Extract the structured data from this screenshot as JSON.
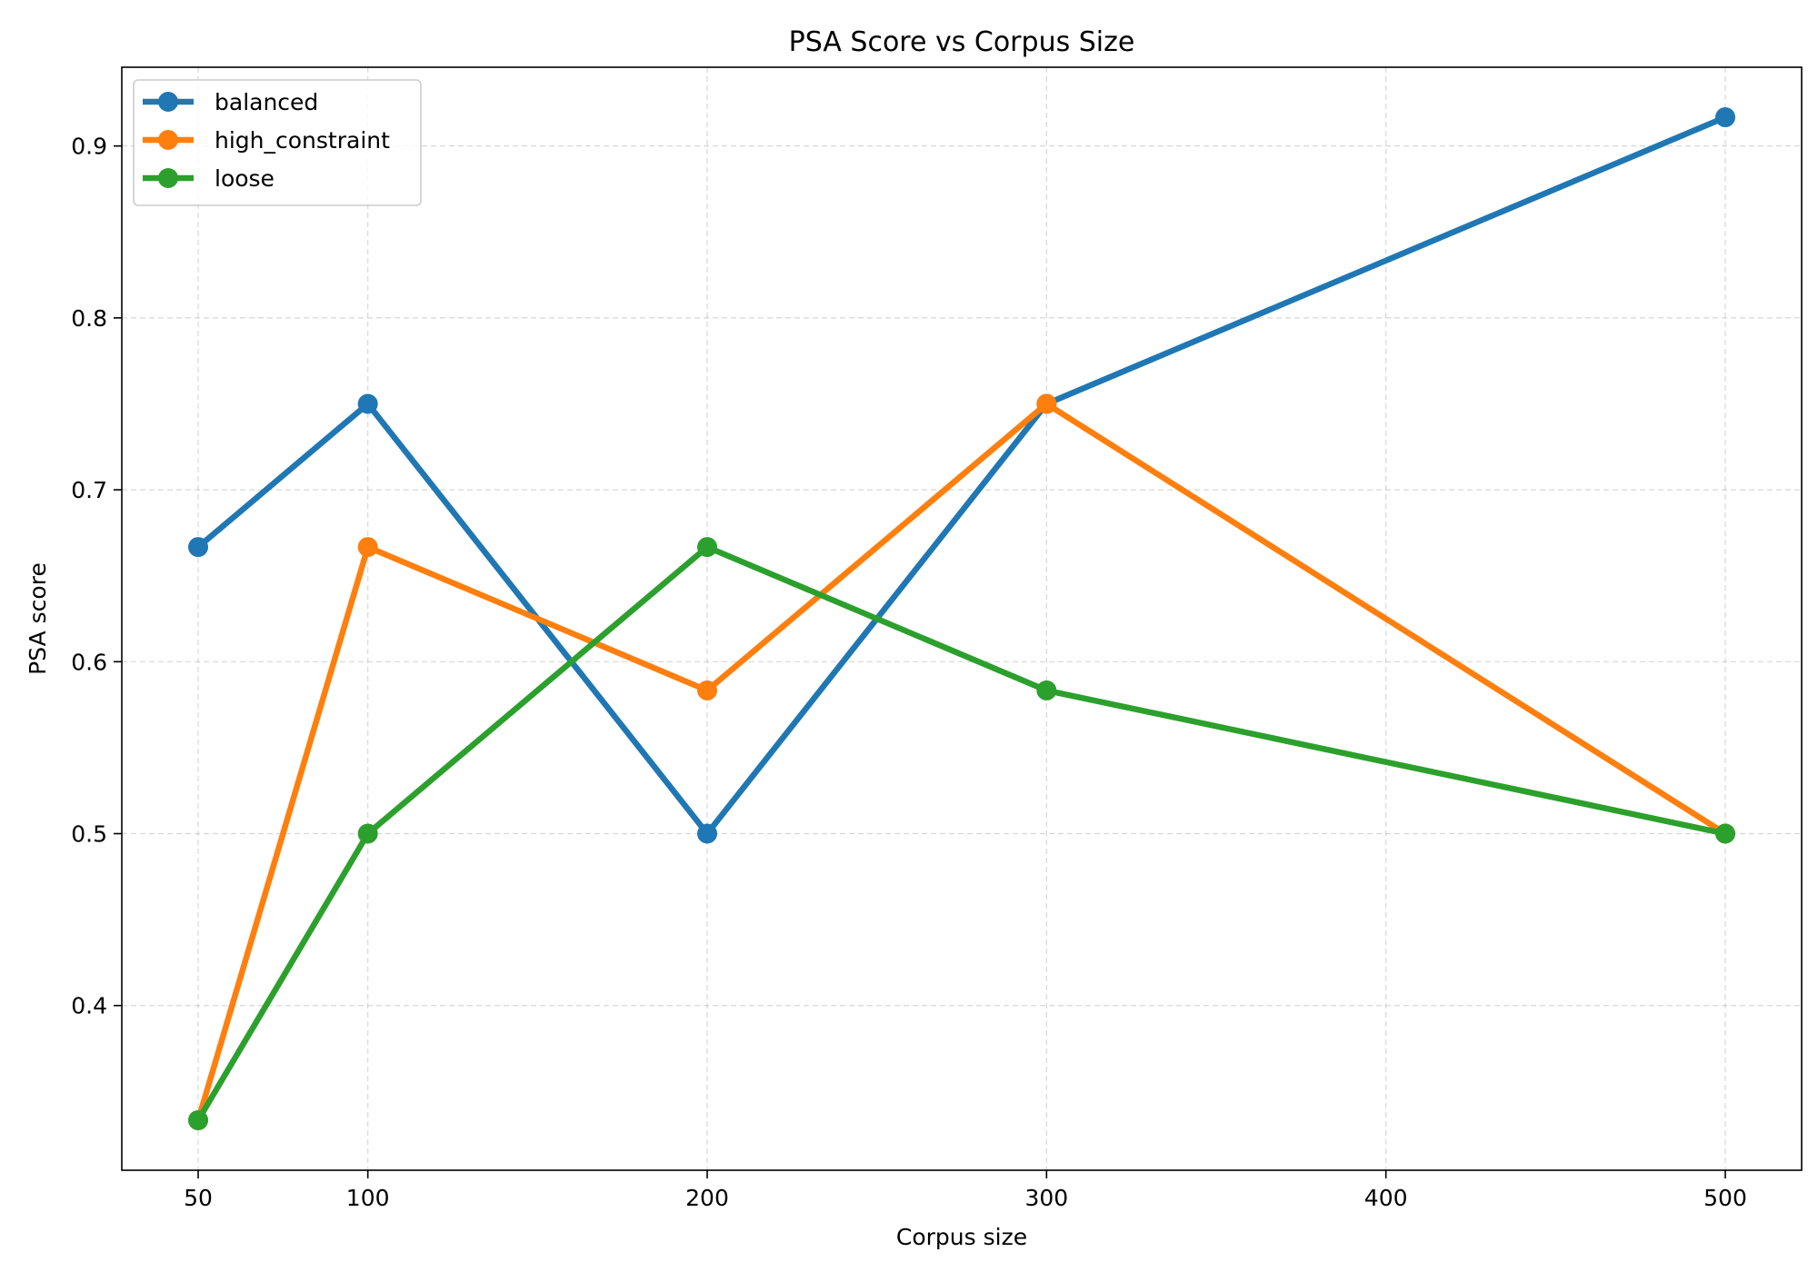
{
  "chart_data": {
    "type": "line",
    "title": "PSA Score vs Corpus Size",
    "xlabel": "Corpus size",
    "ylabel": "PSA score",
    "x": [
      50,
      100,
      200,
      300,
      500
    ],
    "x_ticks": [
      50,
      100,
      200,
      300,
      400,
      500
    ],
    "y_ticks": [
      0.4,
      0.5,
      0.6,
      0.7,
      0.8,
      0.9
    ],
    "xlim": [
      27.5,
      522.5
    ],
    "ylim": [
      0.3042,
      0.9458
    ],
    "grid": true,
    "legend_position": "top-left",
    "series": [
      {
        "name": "balanced",
        "color": "#1f77b4",
        "values": [
          0.6667,
          0.75,
          0.5,
          0.75,
          0.9167
        ]
      },
      {
        "name": "high_constraint",
        "color": "#ff7f0e",
        "values": [
          0.3333,
          0.6667,
          0.5833,
          0.75,
          0.5
        ]
      },
      {
        "name": "loose",
        "color": "#2ca02c",
        "values": [
          0.3333,
          0.5,
          0.6667,
          0.5833,
          0.5
        ]
      }
    ]
  }
}
